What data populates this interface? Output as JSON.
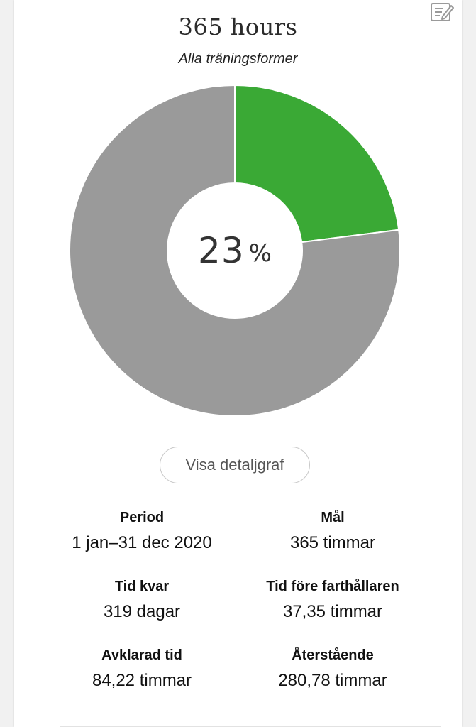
{
  "header": {
    "title": "365 hours",
    "subtitle": "Alla träningsformer"
  },
  "icons": {
    "edit": "edit-icon"
  },
  "chart_data": {
    "type": "pie",
    "style": "donut",
    "slices": [
      {
        "name": "completed",
        "value": 23,
        "color": "#3aa935"
      },
      {
        "name": "remaining",
        "value": 77,
        "color": "#9a9a9a"
      }
    ],
    "center_value": "23",
    "center_unit": "%"
  },
  "button": {
    "detail_label": "Visa detaljgraf"
  },
  "stats": {
    "period": {
      "label": "Period",
      "value": "1 jan–31 dec 2020"
    },
    "goal": {
      "label": "Mål",
      "value": "365 timmar"
    },
    "time_left": {
      "label": "Tid kvar",
      "value": "319 dagar"
    },
    "ahead_of_pacer": {
      "label": "Tid före farthållaren",
      "value": "37,35 timmar"
    },
    "completed": {
      "label": "Avklarad tid",
      "value": "84,22 timmar"
    },
    "remaining": {
      "label": "Återstående",
      "value": "280,78 timmar"
    }
  }
}
